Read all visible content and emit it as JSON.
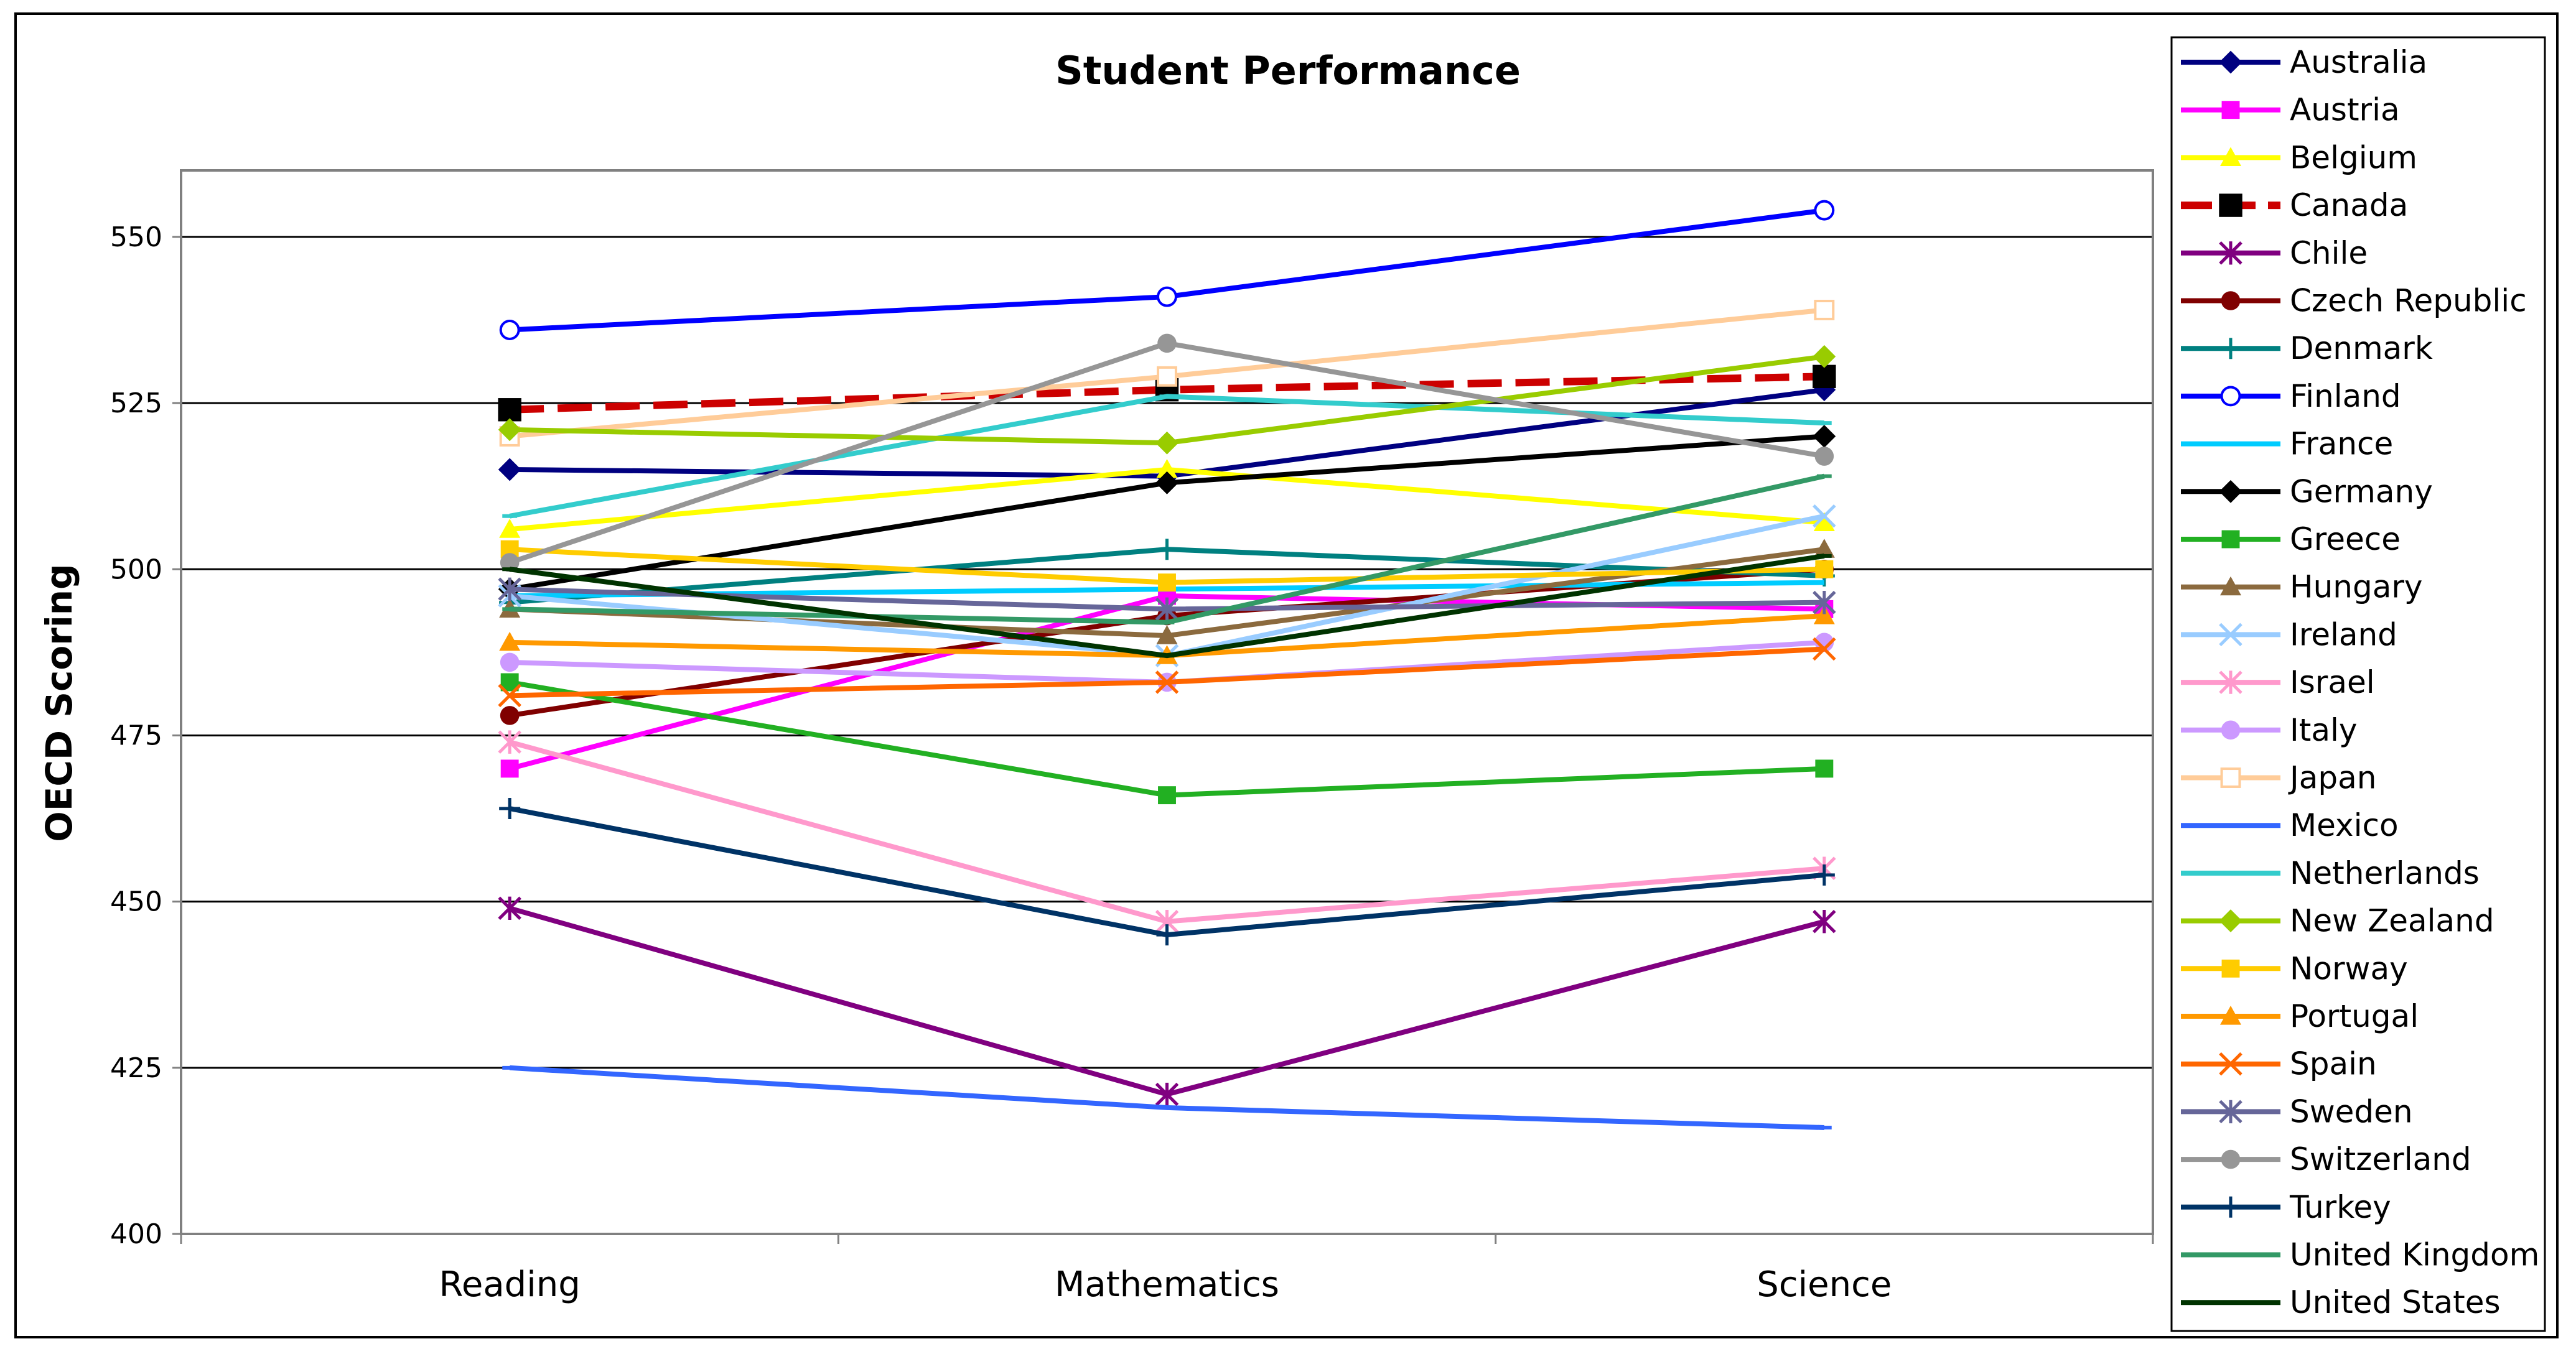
{
  "chart_data": {
    "type": "line",
    "title": "Student Performance",
    "xlabel": "",
    "ylabel": "OECD Scoring",
    "categories": [
      "Reading",
      "Mathematics",
      "Science"
    ],
    "ylim": [
      400,
      560
    ],
    "yticks": [
      400,
      425,
      450,
      475,
      500,
      525,
      550
    ],
    "grid": true,
    "legend_position": "right",
    "series": [
      {
        "name": "Australia",
        "values": [
          515,
          514,
          527
        ],
        "color": "#000080",
        "marker": "diamond",
        "dash": false
      },
      {
        "name": "Austria",
        "values": [
          470,
          496,
          494
        ],
        "color": "#FF00FF",
        "marker": "square",
        "dash": false
      },
      {
        "name": "Belgium",
        "values": [
          506,
          515,
          507
        ],
        "color": "#FFFF00",
        "marker": "triangle",
        "dash": false
      },
      {
        "name": "Canada",
        "values": [
          524,
          527,
          529
        ],
        "color": "#CC0000",
        "marker": "square-black",
        "dash": true
      },
      {
        "name": "Chile",
        "values": [
          449,
          421,
          447
        ],
        "color": "#800080",
        "marker": "asterisk",
        "dash": false
      },
      {
        "name": "Czech Republic",
        "values": [
          478,
          493,
          500
        ],
        "color": "#800000",
        "marker": "circle",
        "dash": false
      },
      {
        "name": "Denmark",
        "values": [
          495,
          503,
          499
        ],
        "color": "#008080",
        "marker": "plus",
        "dash": false
      },
      {
        "name": "Finland",
        "values": [
          536,
          541,
          554
        ],
        "color": "#0000FF",
        "marker": "open-circle",
        "dash": false
      },
      {
        "name": "France",
        "values": [
          496,
          497,
          498
        ],
        "color": "#00CCFF",
        "marker": "none",
        "dash": false
      },
      {
        "name": "Germany",
        "values": [
          497,
          513,
          520
        ],
        "color": "#000000",
        "marker": "diamond",
        "dash": false
      },
      {
        "name": "Greece",
        "values": [
          483,
          466,
          470
        ],
        "color": "#22B022",
        "marker": "square",
        "dash": false
      },
      {
        "name": "Hungary",
        "values": [
          494,
          490,
          503
        ],
        "color": "#8B6A3E",
        "marker": "triangle",
        "dash": false
      },
      {
        "name": "Ireland",
        "values": [
          496,
          487,
          508
        ],
        "color": "#99CCFF",
        "marker": "x",
        "dash": false
      },
      {
        "name": "Israel",
        "values": [
          474,
          447,
          455
        ],
        "color": "#FF99CC",
        "marker": "asterisk",
        "dash": false
      },
      {
        "name": "Italy",
        "values": [
          486,
          483,
          489
        ],
        "color": "#CC99FF",
        "marker": "circle",
        "dash": false
      },
      {
        "name": "Japan",
        "values": [
          520,
          529,
          539
        ],
        "color": "#FFCC99",
        "marker": "open-square",
        "dash": false
      },
      {
        "name": "Mexico",
        "values": [
          425,
          419,
          416
        ],
        "color": "#3366FF",
        "marker": "dash",
        "dash": false
      },
      {
        "name": "Netherlands",
        "values": [
          508,
          526,
          522
        ],
        "color": "#33CCCC",
        "marker": "dash",
        "dash": false
      },
      {
        "name": "New Zealand",
        "values": [
          521,
          519,
          532
        ],
        "color": "#99CC00",
        "marker": "diamond",
        "dash": false
      },
      {
        "name": "Norway",
        "values": [
          503,
          498,
          500
        ],
        "color": "#FFCC00",
        "marker": "square",
        "dash": false
      },
      {
        "name": "Portugal",
        "values": [
          489,
          487,
          493
        ],
        "color": "#FF9900",
        "marker": "triangle",
        "dash": false
      },
      {
        "name": "Spain",
        "values": [
          481,
          483,
          488
        ],
        "color": "#FF6600",
        "marker": "x",
        "dash": false
      },
      {
        "name": "Sweden",
        "values": [
          497,
          494,
          495
        ],
        "color": "#666699",
        "marker": "asterisk",
        "dash": false
      },
      {
        "name": "Switzerland",
        "values": [
          501,
          534,
          517
        ],
        "color": "#969696",
        "marker": "circle",
        "dash": false
      },
      {
        "name": "Turkey",
        "values": [
          464,
          445,
          454
        ],
        "color": "#003366",
        "marker": "plus",
        "dash": false
      },
      {
        "name": "United Kingdom",
        "values": [
          494,
          492,
          514
        ],
        "color": "#339966",
        "marker": "dash",
        "dash": false
      },
      {
        "name": "United States",
        "values": [
          500,
          487,
          502
        ],
        "color": "#003300",
        "marker": "dash",
        "dash": false
      }
    ]
  }
}
